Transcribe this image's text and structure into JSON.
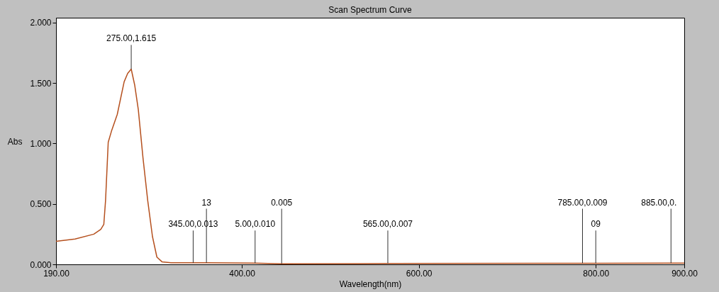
{
  "chart_data": {
    "type": "line",
    "title": "Scan Spectrum Curve",
    "xlabel": "Wavelength(nm)",
    "ylabel": "Abs",
    "xlim": [
      190,
      900
    ],
    "ylim": [
      0,
      2.04
    ],
    "xticks": [
      {
        "value": 190,
        "label": "190.00"
      },
      {
        "value": 400,
        "label": "400.00"
      },
      {
        "value": 600,
        "label": "600.00"
      },
      {
        "value": 800,
        "label": "800.00"
      },
      {
        "value": 900,
        "label": "900.00"
      }
    ],
    "yticks": [
      {
        "value": 0,
        "label": "0.000"
      },
      {
        "value": 0.5,
        "label": "0.500"
      },
      {
        "value": 1,
        "label": "1.000"
      },
      {
        "value": 1.5,
        "label": "1.500"
      },
      {
        "value": 2,
        "label": "2.000"
      }
    ],
    "grid": false,
    "marker": "none",
    "line_style": "solid",
    "series": [
      {
        "color": "#b5501e",
        "x": [
          190,
          211.5,
          232.7,
          240.6,
          244,
          246,
          249,
          252.6,
          259.2,
          267,
          271,
          275,
          279,
          283,
          288.3,
          293.6,
          299,
          304,
          310,
          320,
          345,
          360,
          415,
          445,
          565,
          785,
          800,
          885,
          900
        ],
        "values": [
          0.19,
          0.21,
          0.25,
          0.29,
          0.33,
          0.53,
          1.01,
          1.1,
          1.24,
          1.51,
          1.58,
          1.615,
          1.48,
          1.28,
          0.88,
          0.53,
          0.23,
          0.06,
          0.02,
          0.013,
          0.013,
          0.013,
          0.01,
          0.005,
          0.007,
          0.009,
          0.009,
          0.01,
          0.01
        ]
      }
    ],
    "annotations": [
      {
        "text": "275.00,1.615",
        "x": 275,
        "y": 1.615
      },
      {
        "text": "345.00,0.013",
        "x": 345,
        "y": 0.013
      },
      {
        "text": "13",
        "x": 360,
        "y": 0.013
      },
      {
        "text": "5.00,0.010",
        "x": 415,
        "y": 0.01
      },
      {
        "text": "0.005",
        "x": 445,
        "y": 0.005
      },
      {
        "text": "565.00,0.007",
        "x": 565,
        "y": 0.007
      },
      {
        "text": "785.00,0.009",
        "x": 785,
        "y": 0.009
      },
      {
        "text": "09",
        "x": 800,
        "y": 0.009
      },
      {
        "text": "885.00,0.",
        "x": 885,
        "y": 0.01
      }
    ]
  }
}
